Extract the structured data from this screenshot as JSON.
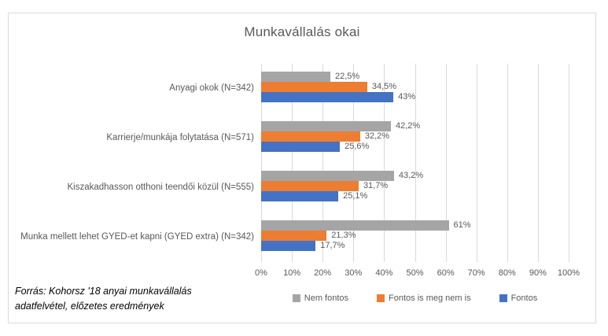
{
  "colors": {
    "series_gray": "#A5A5A5",
    "series_orange": "#ED7D31",
    "series_blue": "#4472C4",
    "gridline": "#D9D9D9",
    "chart_text": "#595959",
    "frame_border": "#D9D9D9"
  },
  "source_note": {
    "line1": "Forrás: Kohorsz '18 anyai munkavállalás",
    "line2": "adatfelvétel, előzetes eredmények"
  },
  "chart_data": {
    "type": "bar",
    "orientation": "horizontal",
    "title": "Munkavállalás okai",
    "categories": [
      "Anyagi okok (N=342)",
      "Karrierje/munkája folytatása (N=571)",
      "Kiszakadhasson otthoni teendői közül (N=555)",
      "Munka mellett lehet GYED-et kapni (GYED extra) (N=342)"
    ],
    "series": [
      {
        "name": "Nem fontos",
        "color": "#A5A5A5",
        "values": [
          22.5,
          42.2,
          43.2,
          61
        ],
        "labels": [
          "22,5%",
          "42,2%",
          "43,2%",
          "61%"
        ]
      },
      {
        "name": "Fontos is meg nem is",
        "color": "#ED7D31",
        "values": [
          34.5,
          32.2,
          31.7,
          21.3
        ],
        "labels": [
          "34,5%",
          "32,2%",
          "31,7%",
          "21,3%"
        ]
      },
      {
        "name": "Fontos",
        "color": "#4472C4",
        "values": [
          43,
          25.6,
          25.1,
          17.7
        ],
        "labels": [
          "43%",
          "25,6%",
          "25,1%",
          "17,7%"
        ]
      }
    ],
    "x_axis": {
      "min": 0,
      "max": 100,
      "ticks": [
        "0%",
        "10%",
        "20%",
        "30%",
        "40%",
        "50%",
        "60%",
        "70%",
        "80%",
        "90%",
        "100%"
      ]
    },
    "grid": "vertical",
    "legend": {
      "position": "bottom",
      "entries": [
        "Nem fontos",
        "Fontos is meg nem is",
        "Fontos"
      ]
    }
  }
}
